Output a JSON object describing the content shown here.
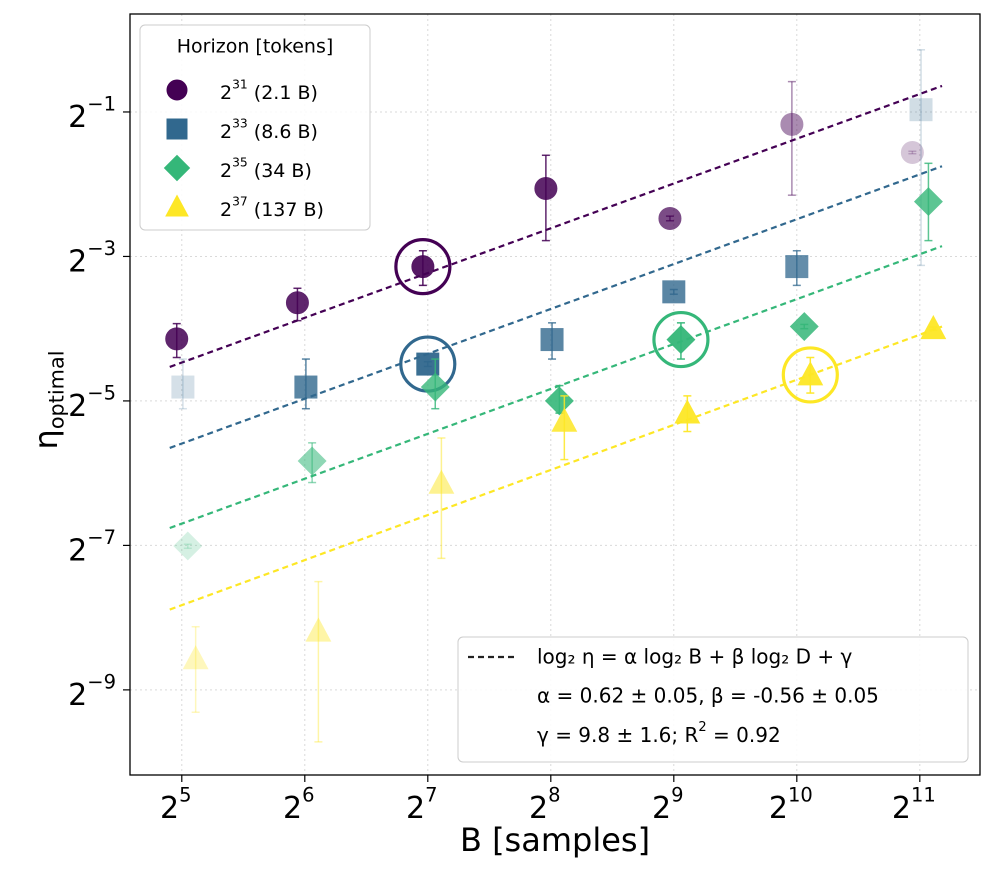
{
  "chart_data": {
    "type": "scatter",
    "xlabel": "B [samples]",
    "ylabel": "η_optimal",
    "log_x": 2,
    "log_y": 2,
    "grid": true,
    "xlim": [
      23.9,
      2875
    ],
    "ylim": [
      0.000863,
      1.28
    ],
    "xticks": [
      {
        "value": 32,
        "label": "2^5"
      },
      {
        "value": 64,
        "label": "2^6"
      },
      {
        "value": 128,
        "label": "2^7"
      },
      {
        "value": 256,
        "label": "2^8"
      },
      {
        "value": 512,
        "label": "2^9"
      },
      {
        "value": 1024,
        "label": "2^10"
      },
      {
        "value": 2048,
        "label": "2^11"
      }
    ],
    "yticks": [
      {
        "value": 0.5,
        "label": "2^−1"
      },
      {
        "value": 0.125,
        "label": "2^−3"
      },
      {
        "value": 0.03125,
        "label": "2^−5"
      },
      {
        "value": 0.0078125,
        "label": "2^−7"
      },
      {
        "value": 0.001953125,
        "label": "2^−9"
      }
    ],
    "legend_title": "Horizon [tokens]",
    "legend": "upper left",
    "fit_legend": [
      "log₂ η = α log₂ B + β log₂ D + γ",
      "α = 0.62 ± 0.05, β = -0.56 ± 0.05",
      "γ = 9.8 ± 1.6; R^2 = 0.92"
    ],
    "series": [
      {
        "name": "2^31 (2.1 B)",
        "color": "#440154",
        "marker": "circle",
        "x": [
          31.1,
          61.4,
          124.5,
          249,
          501,
          996,
          1964
        ],
        "values": [
          0.0567,
          0.0802,
          0.1134,
          0.24,
          0.18,
          0.444,
          0.339
        ],
        "ylow": [
          0.0474,
          0.0675,
          0.0947,
          0.1455,
          0.176,
          0.225,
          0.335
        ],
        "yhigh": [
          0.0656,
          0.0921,
          0.132,
          0.33,
          0.184,
          0.669,
          0.343
        ],
        "alphas": [
          0.85,
          0.85,
          0.9,
          0.85,
          0.7,
          0.45,
          0.22
        ],
        "highlight": 2,
        "fit_x": [
          29.9,
          2321
        ],
        "fit_y": [
          0.0433,
          0.642
        ]
      },
      {
        "name": "2^33 (8.6 B)",
        "color": "#31688e",
        "marker": "square",
        "x": [
          32.2,
          64.4,
          128,
          257.8,
          512,
          1024,
          2062
        ],
        "values": [
          0.0357,
          0.0357,
          0.0445,
          0.0563,
          0.089,
          0.1134,
          0.511
        ],
        "ylow": [
          0.029,
          0.029,
          0.0435,
          0.0467,
          0.087,
          0.0947,
          0.1147
        ],
        "yhigh": [
          0.0467,
          0.0467,
          0.0455,
          0.0661,
          0.091,
          0.132,
          0.908
        ],
        "alphas": [
          0.2,
          0.8,
          0.95,
          0.8,
          0.8,
          0.75,
          0.22
        ],
        "highlight": 2,
        "fit_x": [
          29.9,
          2321
        ],
        "fit_y": [
          0.0199,
          0.297
        ]
      },
      {
        "name": "2^35 (34 B)",
        "color": "#35b779",
        "marker": "diamond",
        "x": [
          33.1,
          66.7,
          133.5,
          268.7,
          533,
          1068,
          2150
        ],
        "values": [
          0.00777,
          0.01756,
          0.0357,
          0.03125,
          0.0563,
          0.0638,
          0.2116
        ],
        "ylow": [
          0.0076,
          0.01428,
          0.029,
          0.0278,
          0.0467,
          0.0625,
          0.1455
        ],
        "yhigh": [
          0.0079,
          0.0209,
          0.0467,
          0.0362,
          0.0661,
          0.0651,
          0.3055
        ],
        "alphas": [
          0.2,
          0.55,
          0.8,
          0.9,
          0.95,
          0.85,
          0.8
        ],
        "highlight": 4,
        "fit_x": [
          29.9,
          2321
        ],
        "fit_y": [
          0.00923,
          0.138
        ]
      },
      {
        "name": "2^37 (137 B)",
        "color": "#fde725",
        "marker": "triangle",
        "x": [
          34.6,
          69.1,
          138.2,
          276.3,
          552.6,
          1105,
          2210
        ],
        "values": [
          0.00263,
          0.00343,
          0.01417,
          0.0257,
          0.0278,
          0.0401,
          0.0625
        ],
        "ylow": [
          0.001576,
          0.001186,
          0.0069,
          0.0178,
          0.0233,
          0.0337,
          0.0615
        ],
        "yhigh": [
          0.00358,
          0.00552,
          0.0219,
          0.0328,
          0.0328,
          0.0474,
          0.0635
        ],
        "alphas": [
          0.3,
          0.4,
          0.5,
          0.85,
          0.95,
          0.95,
          0.95
        ],
        "highlight": 5,
        "fit_x": [
          29.9,
          2321
        ],
        "fit_y": [
          0.00422,
          0.0638
        ]
      }
    ]
  }
}
